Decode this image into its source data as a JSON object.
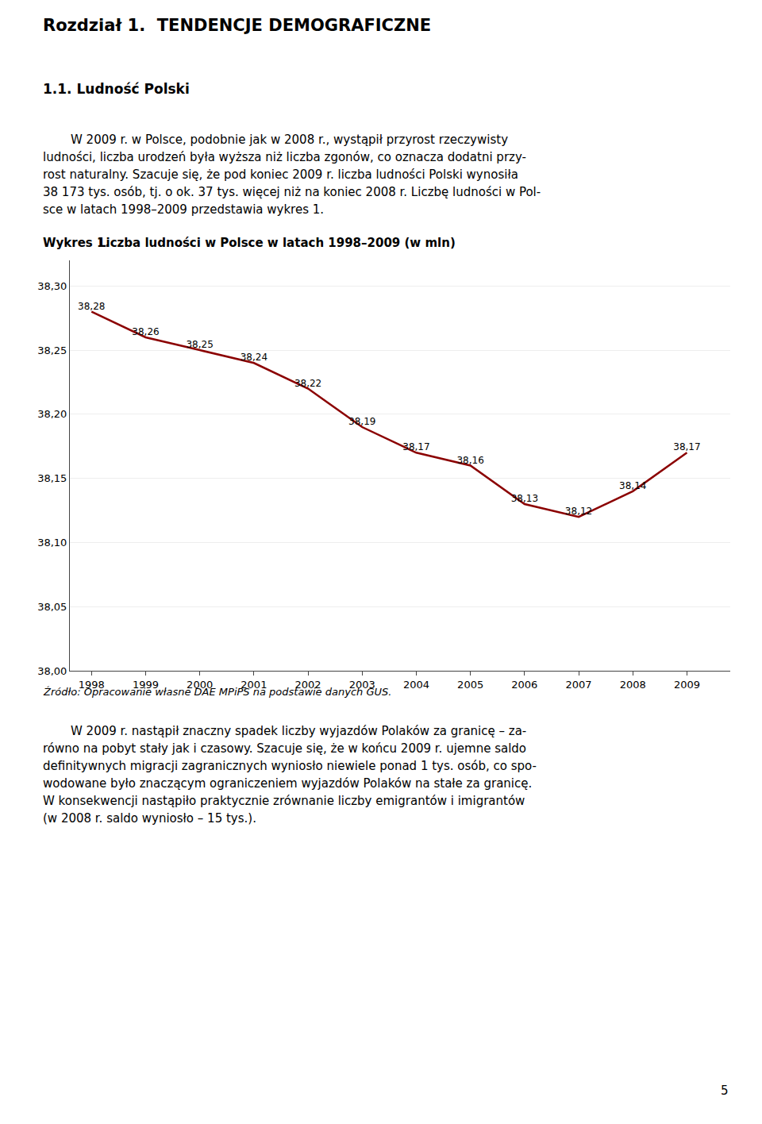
{
  "chart_data": {
    "type": "line",
    "title": "Liczba ludności w Polsce w latach 1998–2009 (w mln)",
    "annotations": [
      "Rozdział 1.  TENDENCJE DEMOGRAFICZNE",
      "1.1. Ludność Polski",
      "W 2009 r. w Polsce, podobnie jak w 2008 r., wystąpił przyrost rzeczywisty",
      "ludności, liczba urodzeń była wyższa niż liczba zgonów, co oznacza dodatni przy-",
      "rost naturalny. Szacuje się, że pod koniec 2009 r. liczba ludności Polski wynosiła",
      "38 173 tys. osób, tj. o ok. 37 tys. więcej niż na koniec 2008 r. Liczbę ludności w Pol-",
      "sce w latach 1998–2009 przedstawia wykres 1.",
      "Wykres 1.",
      "Źródło: Opracowanie własne DAE MPiPS na podstawie danych GUS.",
      "W 2009 r. nastąpił znaczny spadek liczby wyjazdów Polaków za granicę – za-",
      "równo na pobyt stały jak i czasowy. Szacuje się, że w końcu 2009 r. ujemne saldo",
      "definitywnych migracji zagranicznych wyniosło niewiele ponad 1 tys. osób, co spo-",
      "wodowane było znaczącym ograniczeniem wyjazdów Polaków na stałe za granicę.",
      "W konsekwencji nastąpiło praktycznie zrównanie liczby emigrantów i imigrantów",
      "(w 2008 r. saldo wyniosło – 15 tys.).",
      "5"
    ],
    "x": [
      1998,
      1999,
      2000,
      2001,
      2002,
      2003,
      2004,
      2005,
      2006,
      2007,
      2008,
      2009
    ],
    "values": [
      38.28,
      38.26,
      38.25,
      38.24,
      38.22,
      38.19,
      38.17,
      38.16,
      38.13,
      38.12,
      38.14,
      38.17
    ],
    "value_labels": [
      "38,28",
      "38,26",
      "38,25",
      "38,24",
      "38,22",
      "38,19",
      "38,17",
      "38,16",
      "38,13",
      "38,12",
      "38,14",
      "38,17"
    ],
    "data_labels": true,
    "color": "#8B0000",
    "xlim": [
      1997.6,
      2009.8
    ],
    "xticks": [
      1998,
      1999,
      2000,
      2001,
      2002,
      2003,
      2004,
      2005,
      2006,
      2007,
      2008,
      2009
    ],
    "ylim": [
      38.0,
      38.32
    ],
    "yticks": [
      {
        "value": 38.0,
        "label": "38,00"
      },
      {
        "value": 38.05,
        "label": "38,05"
      },
      {
        "value": 38.1,
        "label": "38,10"
      },
      {
        "value": 38.15,
        "label": "38,15"
      },
      {
        "value": 38.2,
        "label": "38,20"
      },
      {
        "value": 38.25,
        "label": "38,25"
      },
      {
        "value": 38.3,
        "label": "38,30"
      }
    ],
    "grid": true
  }
}
